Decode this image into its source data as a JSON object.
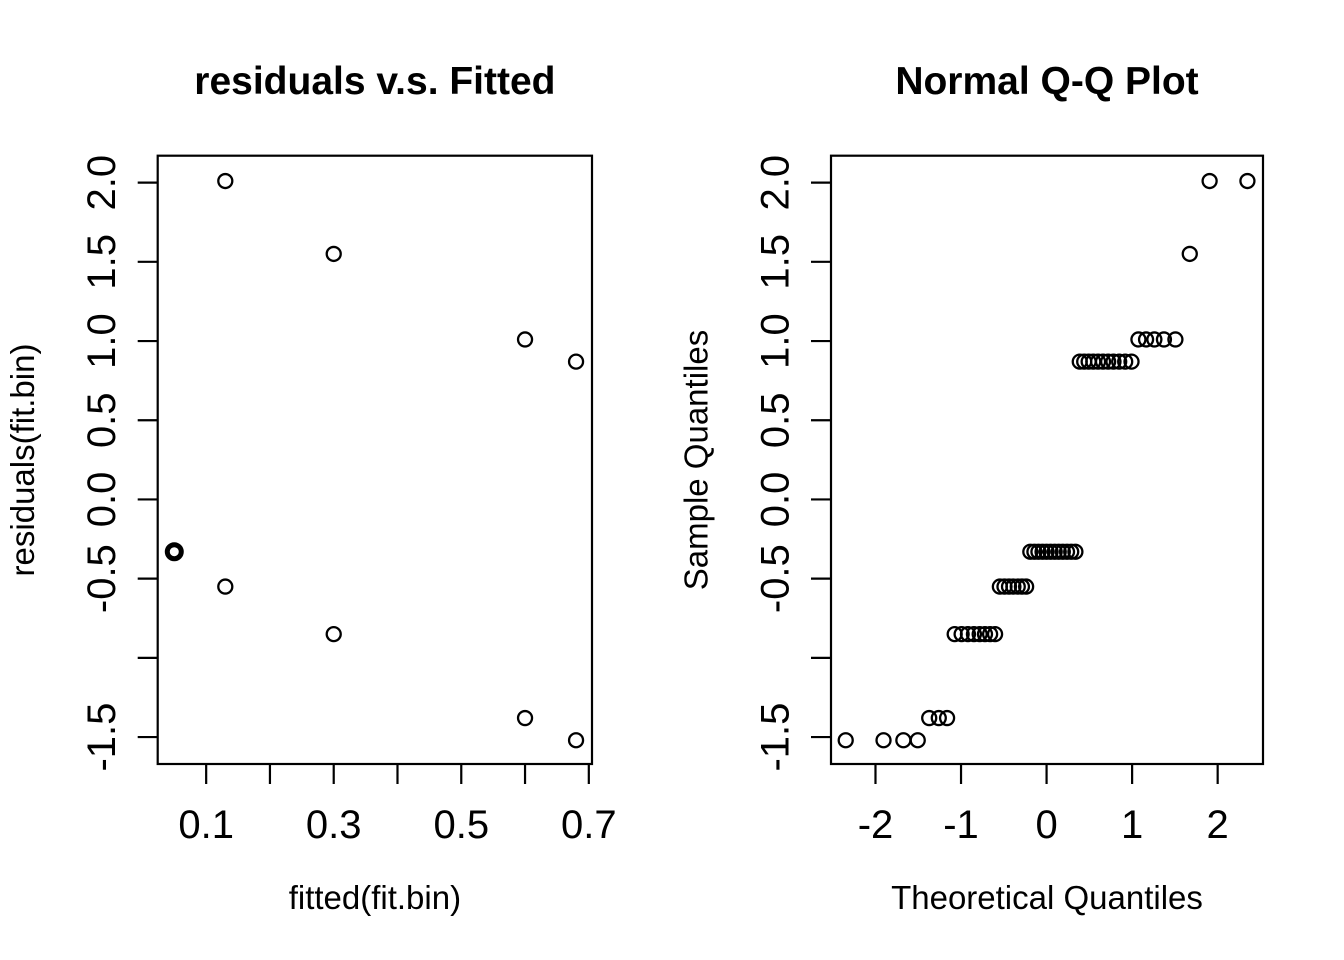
{
  "figure": {
    "background_color": "#ffffff",
    "point_color": "#000000",
    "panel_count": 2
  },
  "chart_data": [
    {
      "type": "scatter",
      "title": "residuals v.s. Fitted",
      "xlabel": "fitted(fit.bin)",
      "ylabel": "residuals(fit.bin)",
      "xlim": [
        0.024,
        0.705
      ],
      "ylim": [
        -1.67,
        2.17
      ],
      "grid": false,
      "legend": "none",
      "marker": "open-circle",
      "xticks": [
        {
          "v": 0.1,
          "label": "0.1"
        },
        {
          "v": 0.2,
          "label": ""
        },
        {
          "v": 0.3,
          "label": "0.3"
        },
        {
          "v": 0.4,
          "label": ""
        },
        {
          "v": 0.5,
          "label": "0.5"
        },
        {
          "v": 0.6,
          "label": ""
        },
        {
          "v": 0.7,
          "label": "0.7"
        }
      ],
      "yticks": [
        {
          "v": -1.5,
          "label": "-1.5"
        },
        {
          "v": -1.0,
          "label": ""
        },
        {
          "v": -0.5,
          "label": "-0.5"
        },
        {
          "v": 0.0,
          "label": "0.0"
        },
        {
          "v": 0.5,
          "label": "0.5"
        },
        {
          "v": 1.0,
          "label": "1.0"
        },
        {
          "v": 1.5,
          "label": "1.5"
        },
        {
          "v": 2.0,
          "label": "2.0"
        }
      ],
      "points": [
        {
          "x": 0.05,
          "y": -0.33,
          "bold": true
        },
        {
          "x": 0.13,
          "y": 2.01
        },
        {
          "x": 0.13,
          "y": -0.55
        },
        {
          "x": 0.3,
          "y": 1.55
        },
        {
          "x": 0.3,
          "y": -0.85
        },
        {
          "x": 0.6,
          "y": 1.01
        },
        {
          "x": 0.6,
          "y": -1.38
        },
        {
          "x": 0.68,
          "y": 0.87
        },
        {
          "x": 0.68,
          "y": -1.52
        }
      ]
    },
    {
      "type": "scatter",
      "title": "Normal Q-Q Plot",
      "xlabel": "Theoretical Quantiles",
      "ylabel": "Sample Quantiles",
      "xlim": [
        -2.52,
        2.53
      ],
      "ylim": [
        -1.67,
        2.17
      ],
      "grid": false,
      "legend": "none",
      "marker": "open-circle",
      "n_points": 53,
      "xticks": [
        {
          "v": -2,
          "label": "-2"
        },
        {
          "v": -1,
          "label": "-1"
        },
        {
          "v": 0,
          "label": "0"
        },
        {
          "v": 1,
          "label": "1"
        },
        {
          "v": 2,
          "label": "2"
        }
      ],
      "yticks": [
        {
          "v": -1.5,
          "label": "-1.5"
        },
        {
          "v": -1.0,
          "label": ""
        },
        {
          "v": -0.5,
          "label": "-0.5"
        },
        {
          "v": 0.0,
          "label": "0.0"
        },
        {
          "v": 0.5,
          "label": "0.5"
        },
        {
          "v": 1.0,
          "label": "1.0"
        },
        {
          "v": 1.5,
          "label": "1.5"
        },
        {
          "v": 2.0,
          "label": "2.0"
        }
      ],
      "rows": [
        {
          "y": -1.52,
          "x": [
            -2.348,
            -1.906,
            -1.674,
            -1.506
          ]
        },
        {
          "y": -1.38,
          "x": [
            -1.372,
            -1.26,
            -1.163
          ]
        },
        {
          "y": -0.85,
          "x": [
            -1.074,
            -0.993,
            -0.919,
            -0.849,
            -0.782,
            -0.72,
            -0.66,
            -0.602
          ]
        },
        {
          "y": -0.55,
          "x": [
            -0.546,
            -0.492,
            -0.439,
            -0.388,
            -0.337,
            -0.288,
            -0.239
          ]
        },
        {
          "y": -0.33,
          "x": [
            -0.19,
            -0.142,
            -0.095,
            -0.047,
            0.0,
            0.047,
            0.095,
            0.142,
            0.19,
            0.239,
            0.288,
            0.337
          ]
        },
        {
          "y": 0.87,
          "x": [
            0.388,
            0.44,
            0.492,
            0.546,
            0.602,
            0.66,
            0.72,
            0.782,
            0.849,
            0.919,
            0.993
          ]
        },
        {
          "y": 1.01,
          "x": [
            1.074,
            1.163,
            1.26,
            1.372,
            1.506
          ]
        },
        {
          "y": 1.55,
          "x": [
            1.674
          ]
        },
        {
          "y": 2.01,
          "x": [
            1.906,
            2.348
          ]
        }
      ]
    }
  ]
}
